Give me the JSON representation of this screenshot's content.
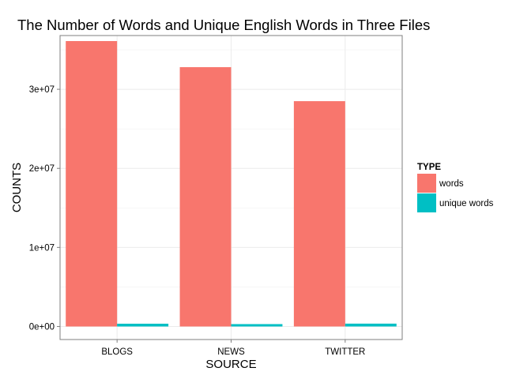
{
  "chart_data": {
    "type": "bar",
    "title": "The Number of Words and Unique English Words in Three Files",
    "xlabel": "SOURCE",
    "ylabel": "COUNTS",
    "categories": [
      "BLOGS",
      "NEWS",
      "TWITTER"
    ],
    "series": [
      {
        "name": "words",
        "color": "#F8766D",
        "values": [
          36100000,
          32800000,
          28500000
        ]
      },
      {
        "name": "unique words",
        "color": "#00BFC4",
        "values": [
          350000,
          300000,
          360000
        ]
      }
    ],
    "ylim": [
      -1650000,
      36800000
    ],
    "yticks": [
      0,
      10000000,
      20000000,
      30000000
    ],
    "ytick_labels": [
      "0e+00",
      "1e+07",
      "2e+07",
      "3e+07"
    ],
    "legend": {
      "title": "TYPE",
      "position": "right"
    },
    "grid": true
  }
}
